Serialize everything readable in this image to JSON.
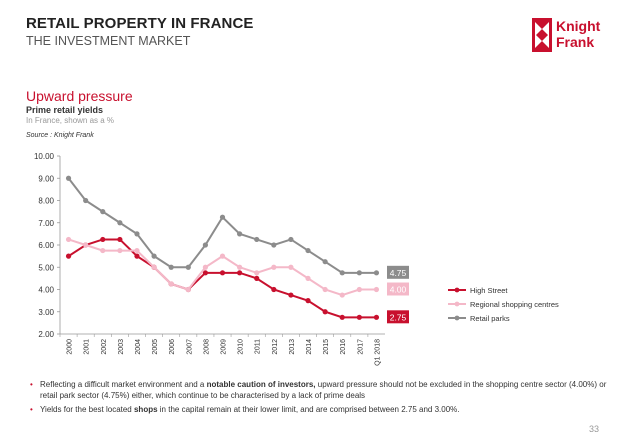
{
  "header": {
    "title": "RETAIL PROPERTY IN FRANCE",
    "subtitle": "THE INVESTMENT MARKET",
    "logo_line1": "Knight",
    "logo_line2": "Frank",
    "brand_color": "#c8102e"
  },
  "section": {
    "heading": "Upward pressure",
    "chart_title": "Prime retail yields",
    "chart_subtitle": "In France, shown as a %",
    "source": "Source : Knight Frank"
  },
  "chart_data": {
    "type": "line",
    "categories": [
      "2000",
      "2001",
      "2002",
      "2003",
      "2004",
      "2005",
      "2006",
      "2007",
      "2008",
      "2009",
      "2010",
      "2011",
      "2012",
      "2013",
      "2014",
      "2015",
      "2016",
      "2017",
      "Q1 2018"
    ],
    "ylim": [
      2.0,
      10.0
    ],
    "yticks": [
      "2.00",
      "3.00",
      "4.00",
      "5.00",
      "6.00",
      "7.00",
      "8.00",
      "9.00",
      "10.00"
    ],
    "grid": false,
    "legend_position": "right",
    "series": [
      {
        "name": "High Street",
        "color": "#c8102e",
        "values": [
          5.5,
          6.0,
          6.25,
          6.25,
          5.5,
          5.0,
          4.25,
          4.0,
          4.75,
          4.75,
          4.75,
          4.5,
          4.0,
          3.75,
          3.5,
          3.0,
          2.75,
          2.75,
          2.75
        ],
        "end_label": "2.75"
      },
      {
        "name": "Regional shopping centres",
        "color": "#f4b8c8",
        "values": [
          6.25,
          6.0,
          5.75,
          5.75,
          5.75,
          5.0,
          4.25,
          4.0,
          5.0,
          5.5,
          5.0,
          4.75,
          5.0,
          5.0,
          4.5,
          4.0,
          3.75,
          4.0,
          4.0
        ],
        "end_label": "4.00"
      },
      {
        "name": "Retail parks",
        "color": "#8c8c8c",
        "values": [
          9.0,
          8.0,
          7.5,
          7.0,
          6.5,
          5.5,
          5.0,
          5.0,
          6.0,
          7.25,
          6.5,
          6.25,
          6.0,
          6.25,
          5.75,
          5.25,
          4.75,
          4.75,
          4.75
        ],
        "end_label": "4.75"
      }
    ]
  },
  "bullets": [
    {
      "before": "Reflecting a difficult market environment and a ",
      "bold": "notable caution of investors,",
      "after": " upward pressure should not be excluded in the shopping centre sector (4.00%) or retail park sector (4.75%) either, which continue to be characterised by a lack of prime deals"
    },
    {
      "before": "Yields for the best located ",
      "bold": "shops",
      "after": " in the capital remain at their lower limit, and are comprised between 2.75 and 3.00%."
    }
  ],
  "page_number": "33"
}
